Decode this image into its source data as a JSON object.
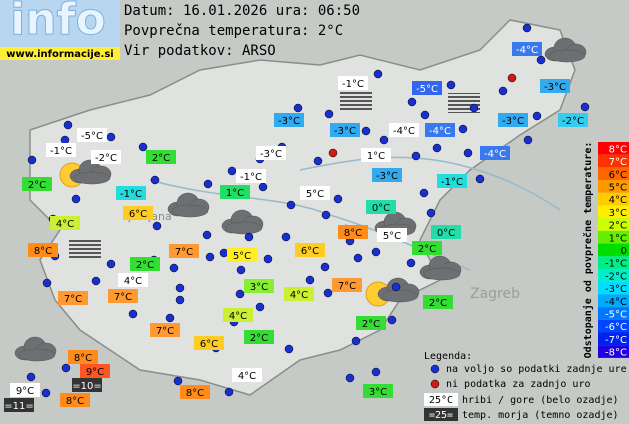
{
  "logo": {
    "title": "info",
    "url": "www.informacije.si"
  },
  "header": {
    "date": "Datum: 16.01.2026 ura: 06:50",
    "average": "Povprečna temperatura: 2°C",
    "source": "Vir podatkov: ARSO"
  },
  "map_labels": [
    "Ljubljana",
    "Zagreb"
  ],
  "stations": [
    {
      "label": "-4°C",
      "color": "#3a78ee"
    },
    {
      "label": "-1°C",
      "color": "#ffffff"
    },
    {
      "label": "-5°C",
      "color": "#3366ee"
    },
    {
      "label": "-3°C",
      "color": "#33aaee"
    },
    {
      "label": "-3°C",
      "color": "#33aaee"
    },
    {
      "label": "-3°C",
      "color": "#33aaee"
    },
    {
      "label": "-4°C",
      "color": "#ffffff"
    },
    {
      "label": "-4°C",
      "color": "#3a78ee"
    },
    {
      "label": "-3°C",
      "color": "#33aaee"
    },
    {
      "label": "-2°C",
      "color": "#33ccee"
    },
    {
      "label": "-5°C",
      "color": "#ffffff"
    },
    {
      "label": "-1°C",
      "color": "#ffffff"
    },
    {
      "label": "-2°C",
      "color": "#ffffff"
    },
    {
      "label": "2°C",
      "color": "#33dd33"
    },
    {
      "label": "-3°C",
      "color": "#ffffff"
    },
    {
      "label": "1°C",
      "color": "#ffffff"
    },
    {
      "label": "-4°C",
      "color": "#3a78ee"
    },
    {
      "label": "2°C",
      "color": "#33dd33"
    },
    {
      "label": "-1°C",
      "color": "#22dddd"
    },
    {
      "label": "-1°C",
      "color": "#ffffff"
    },
    {
      "label": "-3°C",
      "color": "#33aaee"
    },
    {
      "label": "-1°C",
      "color": "#22dddd"
    },
    {
      "label": "1°C",
      "color": "#22dd66"
    },
    {
      "label": "5°C",
      "color": "#ffffff"
    },
    {
      "label": "6°C",
      "color": "#ffcc22"
    },
    {
      "label": "0°C",
      "color": "#22ddaa"
    },
    {
      "label": "4°C",
      "color": "#ccee33"
    },
    {
      "label": "8°C",
      "color": "#ff8c1a"
    },
    {
      "label": "5°C",
      "color": "#ffffff"
    },
    {
      "label": "0°C",
      "color": "#22ddaa"
    },
    {
      "label": "8°C",
      "color": "#ff8c1a"
    },
    {
      "label": "7°C",
      "color": "#ff9a33"
    },
    {
      "label": "5°C",
      "color": "#ffee22"
    },
    {
      "label": "6°C",
      "color": "#ffcc22"
    },
    {
      "label": "2°C",
      "color": "#33dd33"
    },
    {
      "label": "2°C",
      "color": "#33dd33"
    },
    {
      "label": "4°C",
      "color": "#ffffff"
    },
    {
      "label": "3°C",
      "color": "#88ee33"
    },
    {
      "label": "4°C",
      "color": "#ccee33"
    },
    {
      "label": "7°C",
      "color": "#ff9a33"
    },
    {
      "label": "7°C",
      "color": "#ff9a33"
    },
    {
      "label": "7°C",
      "color": "#ff9a33"
    },
    {
      "label": "2°C",
      "color": "#33dd33"
    },
    {
      "label": "4°C",
      "color": "#ccee33"
    },
    {
      "label": "2°C",
      "color": "#33dd33"
    },
    {
      "label": "7°C",
      "color": "#ff9a33"
    },
    {
      "label": "2°C",
      "color": "#33dd33"
    },
    {
      "label": "6°C",
      "color": "#ffcc22"
    },
    {
      "label": "8°C",
      "color": "#ff8c1a"
    },
    {
      "label": "9°C",
      "color": "#ff5522"
    },
    {
      "label": "=10=",
      "color": "#333333"
    },
    {
      "label": "9°C",
      "color": "#ffffff"
    },
    {
      "label": "8°C",
      "color": "#ff8c1a"
    },
    {
      "label": "=11=",
      "color": "#333333"
    },
    {
      "label": "8°C",
      "color": "#ff8c1a"
    },
    {
      "label": "4°C",
      "color": "#ffffff"
    },
    {
      "label": "3°C",
      "color": "#33dd33"
    }
  ],
  "scale": {
    "title": "Odstopanje od povprečne temperature:",
    "steps": [
      {
        "label": "8°C",
        "color": "#ff0000"
      },
      {
        "label": "7°C",
        "color": "#ff3300"
      },
      {
        "label": "6°C",
        "color": "#ff6600"
      },
      {
        "label": "5°C",
        "color": "#ff9900"
      },
      {
        "label": "4°C",
        "color": "#ffcc00"
      },
      {
        "label": "3°C",
        "color": "#ffee00"
      },
      {
        "label": "2°C",
        "color": "#ccff00"
      },
      {
        "label": "1°C",
        "color": "#66ee00"
      },
      {
        "label": "0",
        "color": "#00dd00"
      },
      {
        "label": "-1°C",
        "color": "#00ee88"
      },
      {
        "label": "-2°C",
        "color": "#00eecc"
      },
      {
        "label": "-3°C",
        "color": "#00ddff"
      },
      {
        "label": "-4°C",
        "color": "#00aaff"
      },
      {
        "label": "-5°C",
        "color": "#0077ff"
      },
      {
        "label": "-6°C",
        "color": "#0044ff"
      },
      {
        "label": "-7°C",
        "color": "#0022ee"
      },
      {
        "label": "-8°C",
        "color": "#2200dd"
      }
    ]
  },
  "legend": {
    "title": "Legenda:",
    "available": "na voljo so podatki zadnje ure",
    "missing": "ni podatka za zadnjo uro",
    "hill_sample": "25°C",
    "hill_text": "hribi / gore (belo ozadje)",
    "sea_sample": "=25=",
    "sea_text": "temp. morja (temno ozadje)"
  }
}
